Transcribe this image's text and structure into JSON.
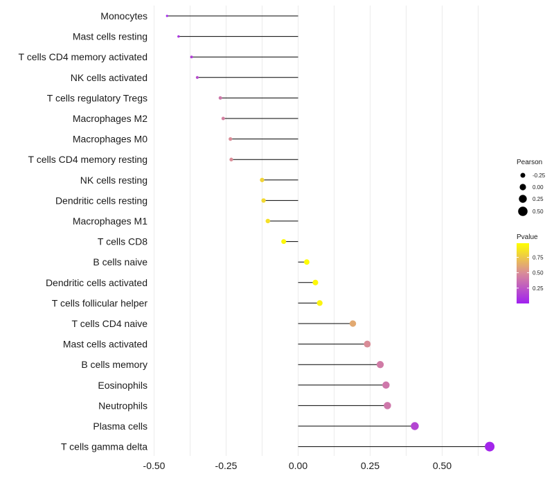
{
  "chart_data": {
    "type": "lollipop",
    "title": "",
    "xlabel": "",
    "ylabel": "",
    "xlim": [
      -0.52,
      0.68
    ],
    "x_ticks": [
      -0.5,
      -0.25,
      0.0,
      0.25,
      0.5
    ],
    "x_tick_labels": [
      "-0.50",
      "-0.25",
      "0.00",
      "0.25",
      "0.50"
    ],
    "grid": true,
    "categories": [
      "Monocytes",
      "Mast cells resting",
      "T cells CD4 memory activated",
      "NK cells activated",
      "T cells regulatory  Tregs ",
      "Macrophages M2",
      "Macrophages M0",
      "T cells CD4 memory resting",
      "NK cells resting",
      "Dendritic cells resting",
      "Macrophages M1",
      "T cells CD8",
      "B cells naive",
      "Dendritic cells activated",
      "T cells follicular helper",
      "T cells CD4 naive",
      "Mast cells activated",
      "B cells memory",
      "Eosinophils",
      "Neutrophils",
      "Plasma cells",
      "T cells gamma delta"
    ],
    "pearson": [
      -0.455,
      -0.415,
      -0.37,
      -0.35,
      -0.27,
      -0.26,
      -0.235,
      -0.232,
      -0.125,
      -0.12,
      -0.105,
      -0.05,
      0.03,
      0.06,
      0.075,
      0.19,
      0.24,
      0.285,
      0.305,
      0.31,
      0.405,
      0.665
    ],
    "pvalue": [
      0.03,
      0.1,
      0.15,
      0.2,
      0.4,
      0.45,
      0.5,
      0.5,
      0.8,
      0.82,
      0.85,
      0.95,
      0.97,
      0.95,
      0.93,
      0.62,
      0.5,
      0.42,
      0.4,
      0.4,
      0.17,
      0.03
    ],
    "legend": {
      "size_title": "Pearson",
      "size_labels": [
        "-0.25",
        "0.00",
        "0.25",
        "0.50"
      ],
      "size_values": [
        -0.25,
        0.0,
        0.25,
        0.5
      ],
      "color_title": "Pvalue",
      "color_labels": [
        "0.75",
        "0.50",
        "0.25"
      ],
      "color_values": [
        0.75,
        0.5,
        0.25
      ],
      "color_range": [
        0.0,
        0.98
      ],
      "position": "right"
    },
    "colors": {
      "low": "#a020f0",
      "mid": "#d88a9a",
      "high": "#ffff00",
      "stem": "#000000",
      "grid": "#ebebeb"
    }
  }
}
